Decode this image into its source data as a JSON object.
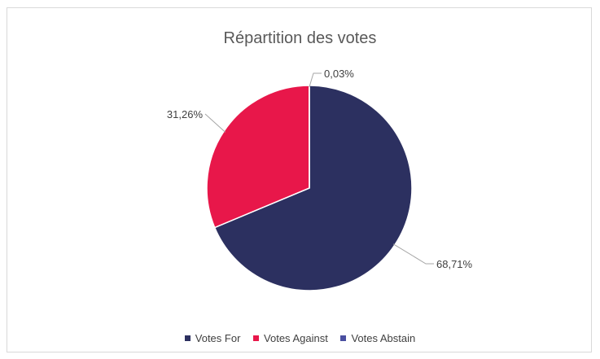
{
  "chart_data": {
    "type": "pie",
    "title": "Répartition des votes",
    "series": [
      {
        "name": "Votes For",
        "value": 68.71,
        "label": "68,71%",
        "color": "#2c3060"
      },
      {
        "name": "Votes Against",
        "value": 31.26,
        "label": "31,26%",
        "color": "#e8174a"
      },
      {
        "name": "Votes Abstain",
        "value": 0.03,
        "label": "0,03%",
        "color": "#4a4fa0"
      }
    ],
    "legend_position": "bottom"
  }
}
